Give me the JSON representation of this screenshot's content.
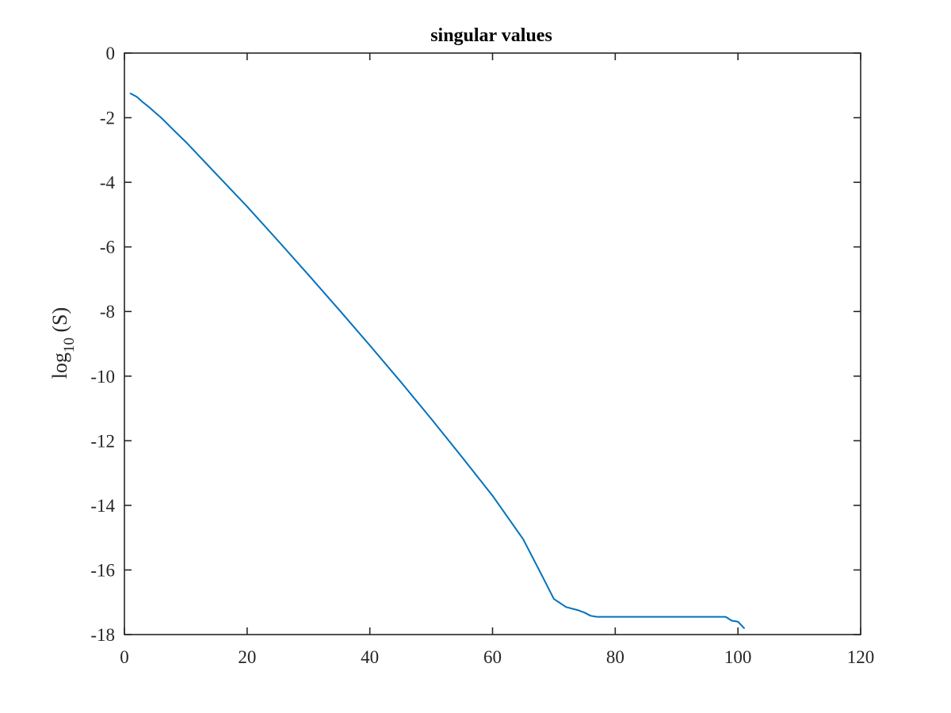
{
  "chart_data": {
    "type": "line",
    "title": "singular values",
    "xlabel": "",
    "ylabel": {
      "prefix": "log",
      "subscript": "10",
      "suffix": " (S)"
    },
    "xlim": [
      0,
      120
    ],
    "ylim": [
      -18,
      0
    ],
    "xticks": [
      0,
      20,
      40,
      60,
      80,
      100,
      120
    ],
    "yticks": [
      0,
      -2,
      -4,
      -6,
      -8,
      -10,
      -12,
      -14,
      -16,
      -18
    ],
    "xtick_labels": [
      "0",
      "20",
      "40",
      "60",
      "80",
      "100",
      "120"
    ],
    "ytick_labels": [
      "0",
      "-2",
      "-4",
      "-6",
      "-8",
      "-10",
      "-12",
      "-14",
      "-16",
      "-18"
    ],
    "grid": false,
    "box": true,
    "series": [
      {
        "name": "log10(S)",
        "color": "#0072BD",
        "x": [
          1,
          2,
          3,
          4,
          5,
          6,
          8,
          10,
          15,
          20,
          25,
          30,
          35,
          40,
          45,
          50,
          55,
          60,
          65,
          68,
          70,
          72,
          74,
          75,
          76,
          77,
          80,
          85,
          90,
          95,
          98,
          99,
          100,
          101
        ],
        "y": [
          -1.25,
          -1.35,
          -1.52,
          -1.67,
          -1.84,
          -2.0,
          -2.38,
          -2.75,
          -3.75,
          -4.75,
          -5.8,
          -6.87,
          -7.95,
          -9.05,
          -10.17,
          -11.32,
          -12.5,
          -13.7,
          -15.05,
          -16.15,
          -16.9,
          -17.15,
          -17.25,
          -17.32,
          -17.42,
          -17.45,
          -17.45,
          -17.45,
          -17.45,
          -17.45,
          -17.45,
          -17.57,
          -17.6,
          -17.8
        ]
      }
    ]
  }
}
